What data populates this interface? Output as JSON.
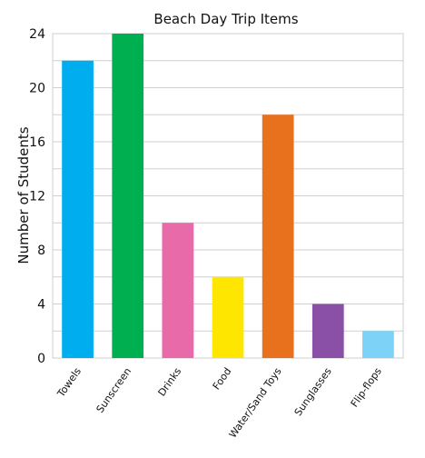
{
  "chart_data": {
    "type": "bar",
    "title": "Beach Day Trip Items",
    "xlabel": "",
    "ylabel": "Number of Students",
    "categories": [
      "Towels",
      "Sunscreen",
      "Drinks",
      "Food",
      "Water/Sand Toys",
      "Sunglasses",
      "Flip-flops"
    ],
    "values": [
      22,
      24,
      10,
      6,
      18,
      4,
      2
    ],
    "colors": [
      "#00AEEF",
      "#00B050",
      "#E96AA8",
      "#FFE600",
      "#E8711E",
      "#8A4FA6",
      "#7DD3F7"
    ],
    "ylim": [
      0,
      24
    ],
    "yticks": [
      0,
      4,
      8,
      12,
      16,
      20,
      24
    ],
    "grid": true,
    "legend": "none"
  }
}
